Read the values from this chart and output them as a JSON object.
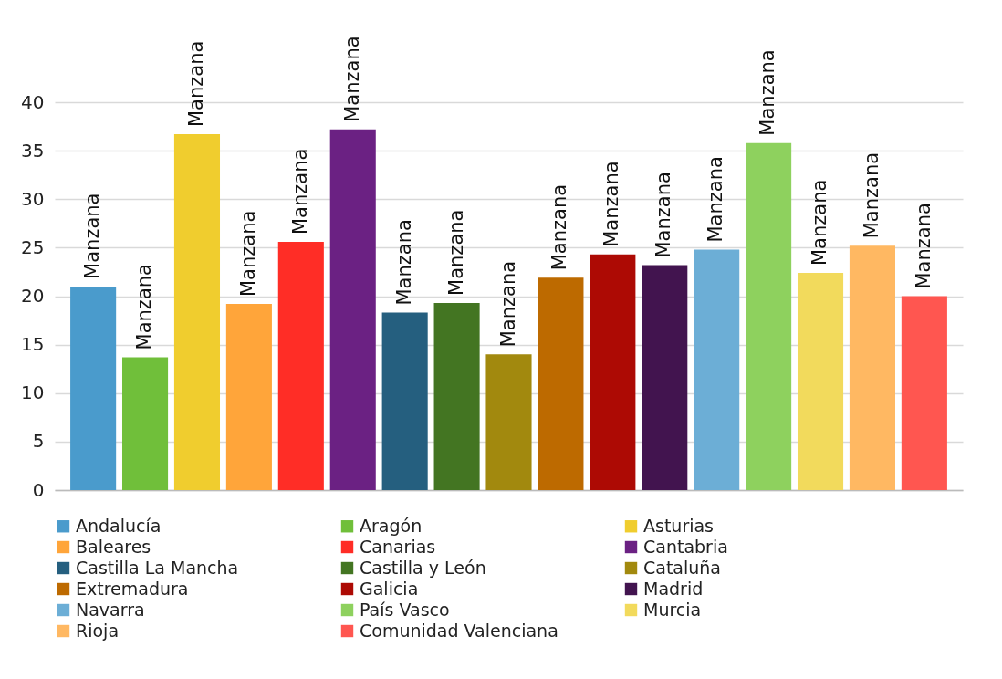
{
  "chart_data": {
    "type": "bar",
    "categories": [
      null
    ],
    "ylim": [
      0,
      40
    ],
    "yticks": [
      0,
      5,
      10,
      15,
      20,
      25,
      30,
      35,
      40
    ],
    "grid": "y",
    "legend": "bottom",
    "series": [
      {
        "name": "Andalucía",
        "color": "#4a9bcc",
        "values": [
          21.0
        ],
        "value_labels": [
          "Manzana"
        ]
      },
      {
        "name": "Aragón",
        "color": "#70bf3a",
        "values": [
          13.7
        ],
        "value_labels": [
          "Manzana"
        ]
      },
      {
        "name": "Asturias",
        "color": "#f0cd2e",
        "values": [
          36.7
        ],
        "value_labels": [
          "Manzana"
        ]
      },
      {
        "name": "Baleares",
        "color": "#ffa53a",
        "values": [
          19.2
        ],
        "value_labels": [
          "Manzana"
        ]
      },
      {
        "name": "Canarias",
        "color": "#ff2d26",
        "values": [
          25.6
        ],
        "value_labels": [
          "Manzana"
        ]
      },
      {
        "name": "Cantabria",
        "color": "#6b2183",
        "values": [
          37.2
        ],
        "value_labels": [
          "Manzana"
        ]
      },
      {
        "name": "Castilla La Mancha",
        "color": "#255f7f",
        "values": [
          18.3
        ],
        "value_labels": [
          "Manzana"
        ]
      },
      {
        "name": "Castilla y León",
        "color": "#437522",
        "values": [
          19.3
        ],
        "value_labels": [
          "Manzana"
        ]
      },
      {
        "name": "Cataluña",
        "color": "#a2890e",
        "values": [
          14.0
        ],
        "value_labels": [
          "Manzana"
        ]
      },
      {
        "name": "Extremadura",
        "color": "#bd6a00",
        "values": [
          21.9
        ],
        "value_labels": [
          "Manzana"
        ]
      },
      {
        "name": "Galicia",
        "color": "#ad0a04",
        "values": [
          24.3
        ],
        "value_labels": [
          "Manzana"
        ]
      },
      {
        "name": "Madrid",
        "color": "#42144f",
        "values": [
          23.2
        ],
        "value_labels": [
          "Manzana"
        ]
      },
      {
        "name": "Navarra",
        "color": "#6caed6",
        "values": [
          24.8
        ],
        "value_labels": [
          "Manzana"
        ]
      },
      {
        "name": "País Vasco",
        "color": "#8ed15e",
        "values": [
          35.8
        ],
        "value_labels": [
          "Manzana"
        ]
      },
      {
        "name": "Murcia",
        "color": "#f2da5c",
        "values": [
          22.4
        ],
        "value_labels": [
          "Manzana"
        ]
      },
      {
        "name": "Rioja",
        "color": "#ffb862",
        "values": [
          25.2
        ],
        "value_labels": [
          "Manzana"
        ]
      },
      {
        "name": "Comunidad Valenciana",
        "color": "#ff5650",
        "values": [
          20.0
        ],
        "value_labels": [
          "Manzana"
        ]
      }
    ]
  }
}
